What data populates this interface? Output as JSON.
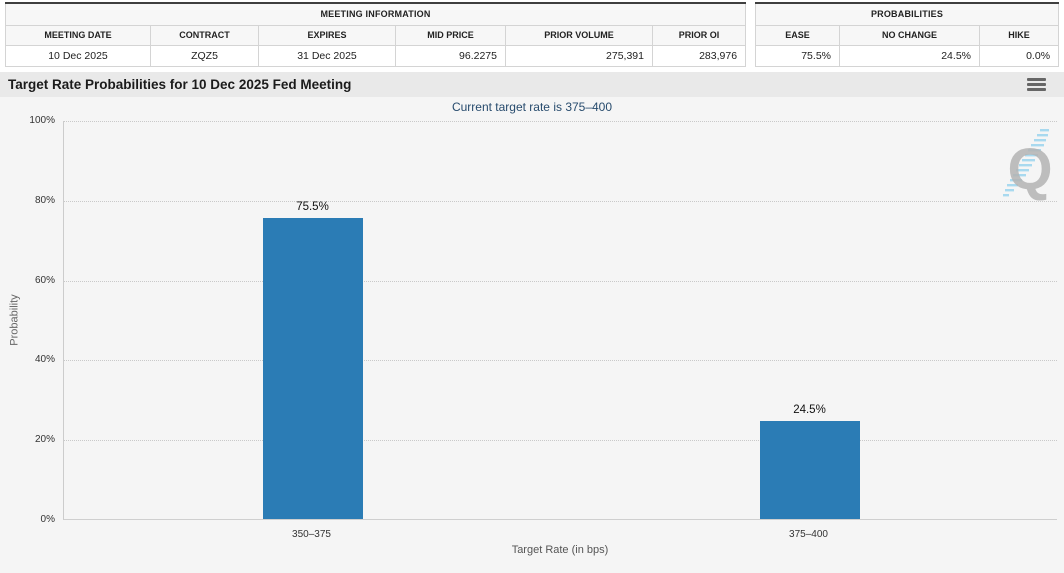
{
  "meeting_information": {
    "title": "MEETING INFORMATION",
    "columns": [
      "MEETING DATE",
      "CONTRACT",
      "EXPIRES",
      "MID PRICE",
      "PRIOR VOLUME",
      "PRIOR OI"
    ],
    "values": [
      "10 Dec 2025",
      "ZQZ5",
      "31 Dec 2025",
      "96.2275",
      "275,391",
      "283,976"
    ]
  },
  "probabilities": {
    "title": "PROBABILITIES",
    "columns": [
      "EASE",
      "NO CHANGE",
      "HIKE"
    ],
    "values": [
      "75.5%",
      "24.5%",
      "0.0%"
    ]
  },
  "chart": {
    "title": "Target Rate Probabilities for 10 Dec 2025 Fed Meeting",
    "subtitle": "Current target rate is 375–400",
    "menu_icon": "hamburger-icon",
    "watermark_letter": "Q"
  },
  "chart_data": {
    "type": "bar",
    "title": "Target Rate Probabilities for 10 Dec 2025 Fed Meeting",
    "subtitle": "Current target rate is 375–400",
    "categories": [
      "350–375",
      "375–400"
    ],
    "values": [
      75.5,
      24.5
    ],
    "data_labels": [
      "75.5%",
      "24.5%"
    ],
    "xlabel": "Target Rate (in bps)",
    "ylabel": "Probability",
    "ylim": [
      0,
      100
    ],
    "yticks": [
      "0%",
      "20%",
      "40%",
      "60%",
      "80%",
      "100%"
    ],
    "grid": "dotted horizontal",
    "legend": "none",
    "bar_color": "#2b7cb5",
    "subtitle_color": "#274b6d"
  }
}
